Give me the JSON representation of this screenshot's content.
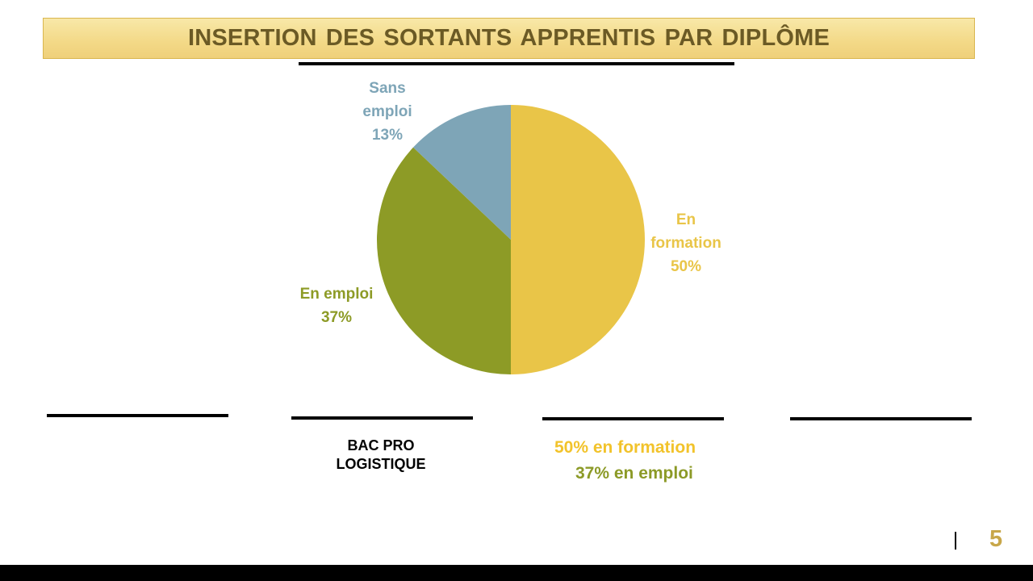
{
  "slide": {
    "title": "INSERTION DES SORTANTS APPRENTIS PAR DIPLÔME",
    "page_number": "5"
  },
  "diploma": {
    "line1": "BAC PRO",
    "line2": "LOGISTIQUE"
  },
  "summary": {
    "formation_text": "50% en formation",
    "emploi_text": "37% en emploi",
    "formation_color": "#f2c32b",
    "emploi_color": "#8c9a27"
  },
  "colors": {
    "title_text": "#6b5a25",
    "page_number": "#c8a74a"
  },
  "chart_data": {
    "type": "pie",
    "slices": [
      {
        "name": "En formation",
        "value": 50,
        "label": [
          "En",
          "formation",
          "50%"
        ],
        "color": "#e9c548",
        "label_color": "#e9c548"
      },
      {
        "name": "En emploi",
        "value": 37,
        "label": [
          "En emploi",
          "37%"
        ],
        "color": "#8d9b26",
        "label_color": "#8d9b26"
      },
      {
        "name": "Sans emploi",
        "value": 13,
        "label": [
          "Sans",
          "emploi",
          "13%"
        ],
        "color": "#7ea5b7",
        "label_color": "#7ea5b7"
      }
    ]
  }
}
